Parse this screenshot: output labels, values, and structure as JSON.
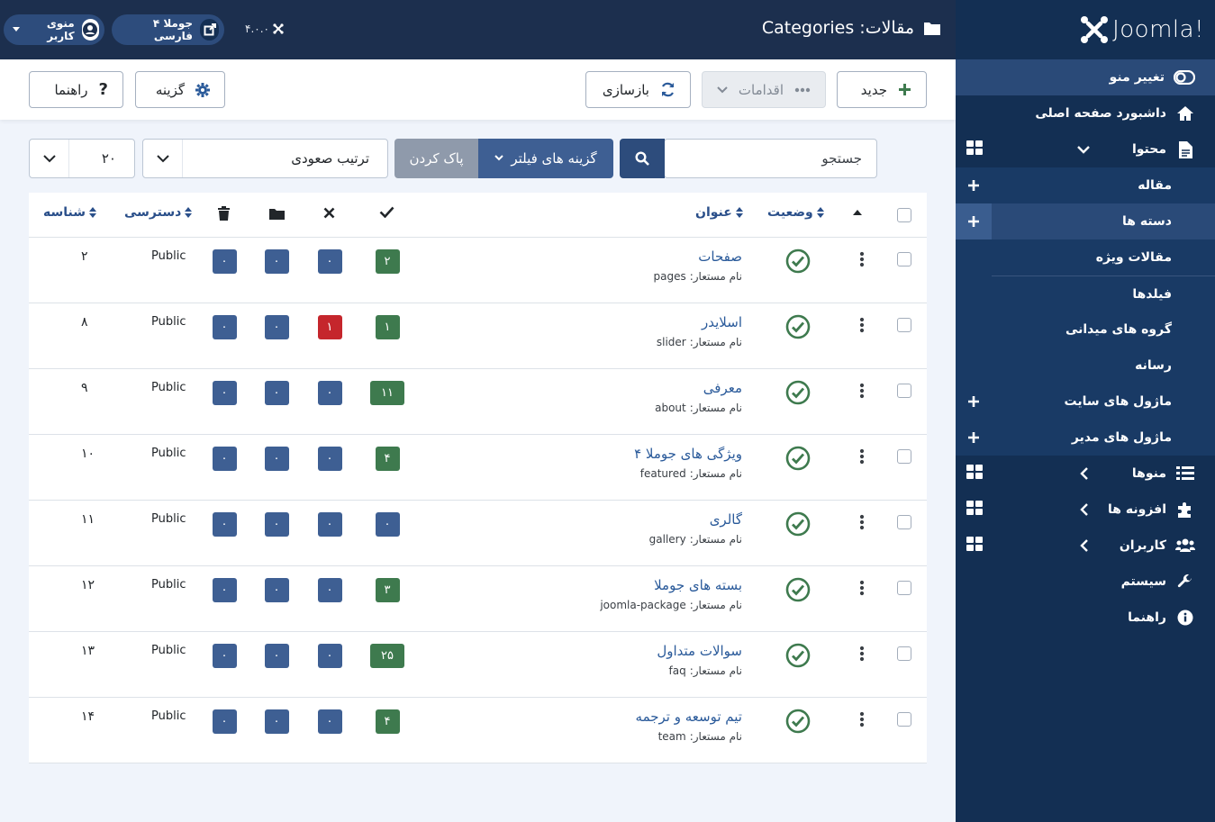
{
  "header": {
    "title": "مقالات: Categories",
    "version": "۴.۰.۰",
    "user_menu_label": "منوی کاربر",
    "site_link_label": "جوملا ۴ فارسی"
  },
  "toolbar": {
    "new_label": "جدید",
    "actions_label": "اقدامات",
    "rebuild_label": "بازسازی",
    "options_label": "گزینه",
    "help_label": "راهنما"
  },
  "filters": {
    "search_placeholder": "جستجو",
    "filter_options_label": "گزینه های فیلتر",
    "clear_label": "پاک کردن",
    "ordering_value": "ترتیب صعودی",
    "limit_value": "۲۰"
  },
  "table": {
    "headers": {
      "status": "وضعیت",
      "title": "عنوان",
      "access": "دسترسی",
      "id": "شناسه"
    },
    "alias_prefix": "نام مستعار:",
    "rows": [
      {
        "title": "صفحات",
        "alias": "pages",
        "published": "۲",
        "unpublished": "۰",
        "archived": "۰",
        "trashed": "۰",
        "access": "Public",
        "id": "۲"
      },
      {
        "title": "اسلایدر",
        "alias": "slider",
        "published": "۱",
        "unpublished": "۱",
        "archived": "۰",
        "trashed": "۰",
        "access": "Public",
        "id": "۸"
      },
      {
        "title": "معرفی",
        "alias": "about",
        "published": "۱۱",
        "unpublished": "۰",
        "archived": "۰",
        "trashed": "۰",
        "access": "Public",
        "id": "۹"
      },
      {
        "title": "ویژگی های جوملا ۴",
        "alias": "featured",
        "published": "۴",
        "unpublished": "۰",
        "archived": "۰",
        "trashed": "۰",
        "access": "Public",
        "id": "۱۰"
      },
      {
        "title": "گالری",
        "alias": "gallery",
        "published": "۰",
        "unpublished": "۰",
        "archived": "۰",
        "trashed": "۰",
        "access": "Public",
        "id": "۱۱"
      },
      {
        "title": "بسته های جوملا",
        "alias": "joomla-package",
        "published": "۳",
        "unpublished": "۰",
        "archived": "۰",
        "trashed": "۰",
        "access": "Public",
        "id": "۱۲"
      },
      {
        "title": "سوالات متداول",
        "alias": "faq",
        "published": "۲۵",
        "unpublished": "۰",
        "archived": "۰",
        "trashed": "۰",
        "access": "Public",
        "id": "۱۳"
      },
      {
        "title": "تیم توسعه و ترجمه",
        "alias": "team",
        "published": "۴",
        "unpublished": "۰",
        "archived": "۰",
        "trashed": "۰",
        "access": "Public",
        "id": "۱۴"
      }
    ]
  },
  "sidebar": {
    "brand": "Joomla!",
    "toggle_label": "تغییر منو",
    "dashboard_label": "داشبورد صفحه اصلی",
    "content_label": "محتوا",
    "content_items": [
      {
        "label": "مقاله"
      },
      {
        "label": "دسته ها"
      },
      {
        "label": "مقالات ویژه"
      },
      {
        "label": "فیلدها"
      },
      {
        "label": "گروه های میدانی"
      },
      {
        "label": "رسانه"
      },
      {
        "label": "ماژول های سایت"
      },
      {
        "label": "ماژول های مدیر"
      }
    ],
    "menus_label": "منوها",
    "extensions_label": "افزونه ها",
    "users_label": "کاربران",
    "system_label": "سیستم",
    "help_label": "راهنما"
  },
  "colors": {
    "sidebar_bg": "#132f53",
    "header_bg": "#1c2f4e",
    "accent_blue": "#2a4f8a",
    "success_green": "#3e7a4e",
    "danger_red": "#c5262c",
    "badge_blue": "#3e5f93"
  }
}
